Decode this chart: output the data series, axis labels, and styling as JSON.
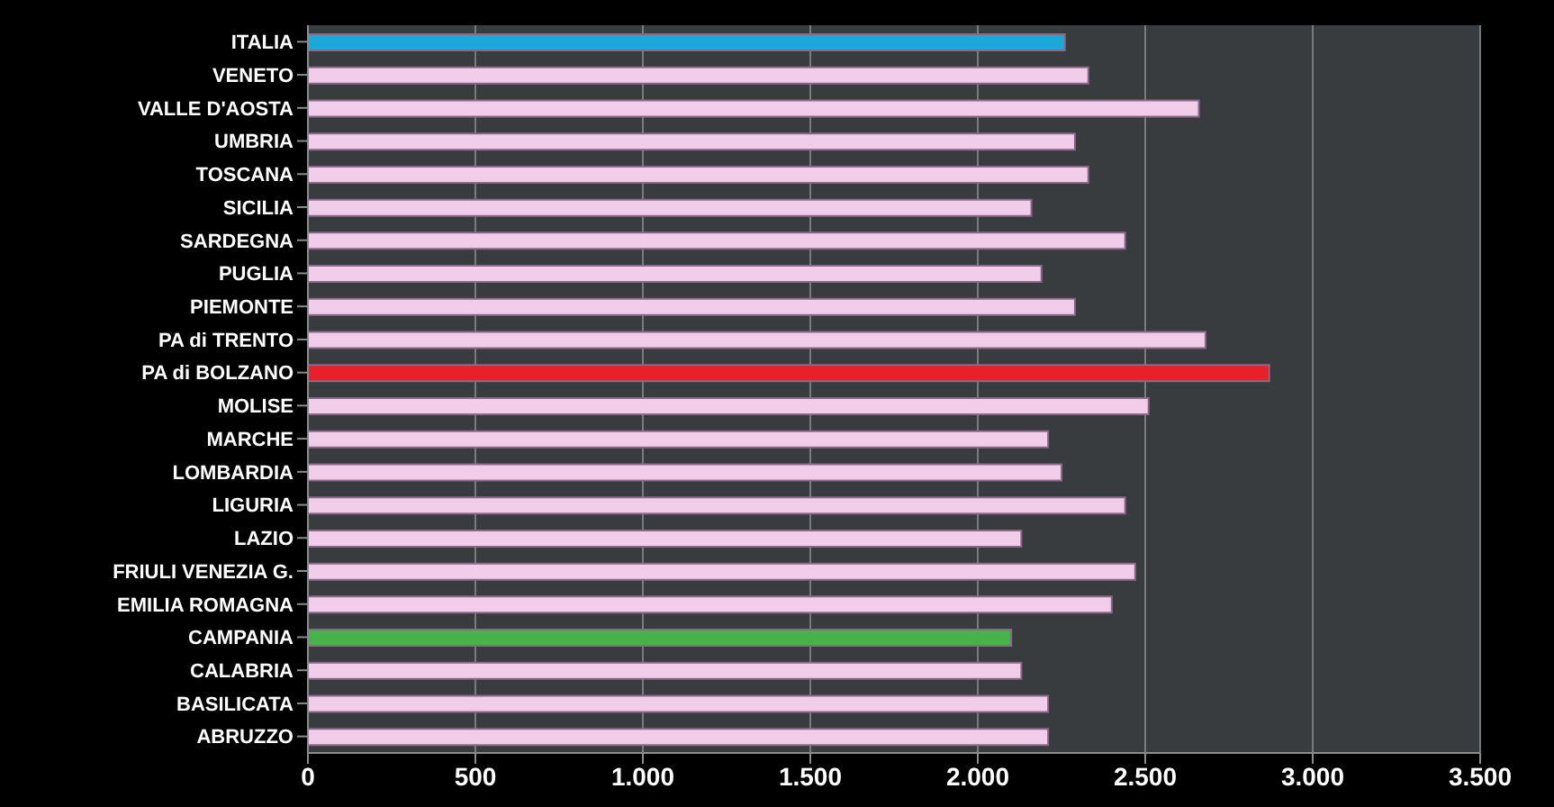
{
  "chart_data": {
    "type": "bar",
    "orientation": "horizontal",
    "categories": [
      "ITALIA",
      "VENETO",
      "VALLE D'AOSTA",
      "UMBRIA",
      "TOSCANA",
      "SICILIA",
      "SARDEGNA",
      "PUGLIA",
      "PIEMONTE",
      "PA di TRENTO",
      "PA di BOLZANO",
      "MOLISE",
      "MARCHE",
      "LOMBARDIA",
      "LIGURIA",
      "LAZIO",
      "FRIULI VENEZIA G.",
      "EMILIA ROMAGNA",
      "CAMPANIA",
      "CALABRIA",
      "BASILICATA",
      "ABRUZZO"
    ],
    "values": [
      2260,
      2330,
      2660,
      2290,
      2330,
      2160,
      2440,
      2190,
      2290,
      2680,
      2870,
      2510,
      2210,
      2250,
      2440,
      2130,
      2470,
      2400,
      2100,
      2130,
      2210,
      2210
    ],
    "colors": [
      "#1ba9d9",
      "#f2cdea",
      "#f2cdea",
      "#f2cdea",
      "#f2cdea",
      "#f2cdea",
      "#f2cdea",
      "#f2cdea",
      "#f2cdea",
      "#f2cdea",
      "#e8202a",
      "#f2cdea",
      "#f2cdea",
      "#f2cdea",
      "#f2cdea",
      "#f2cdea",
      "#f2cdea",
      "#f2cdea",
      "#45b34a",
      "#f2cdea",
      "#f2cdea",
      "#f2cdea"
    ],
    "xlim": [
      0,
      3500
    ],
    "xticks": [
      0,
      500,
      {
        "value": 1000,
        "label": "1.000"
      },
      {
        "value": 1500,
        "label": "1.500"
      },
      {
        "value": 2000,
        "label": "2.000"
      },
      {
        "value": 2500,
        "label": "2.500"
      },
      {
        "value": 3000,
        "label": "3.000"
      },
      {
        "value": 3500,
        "label": "3.500"
      }
    ],
    "grid": "x",
    "legend": false
  }
}
